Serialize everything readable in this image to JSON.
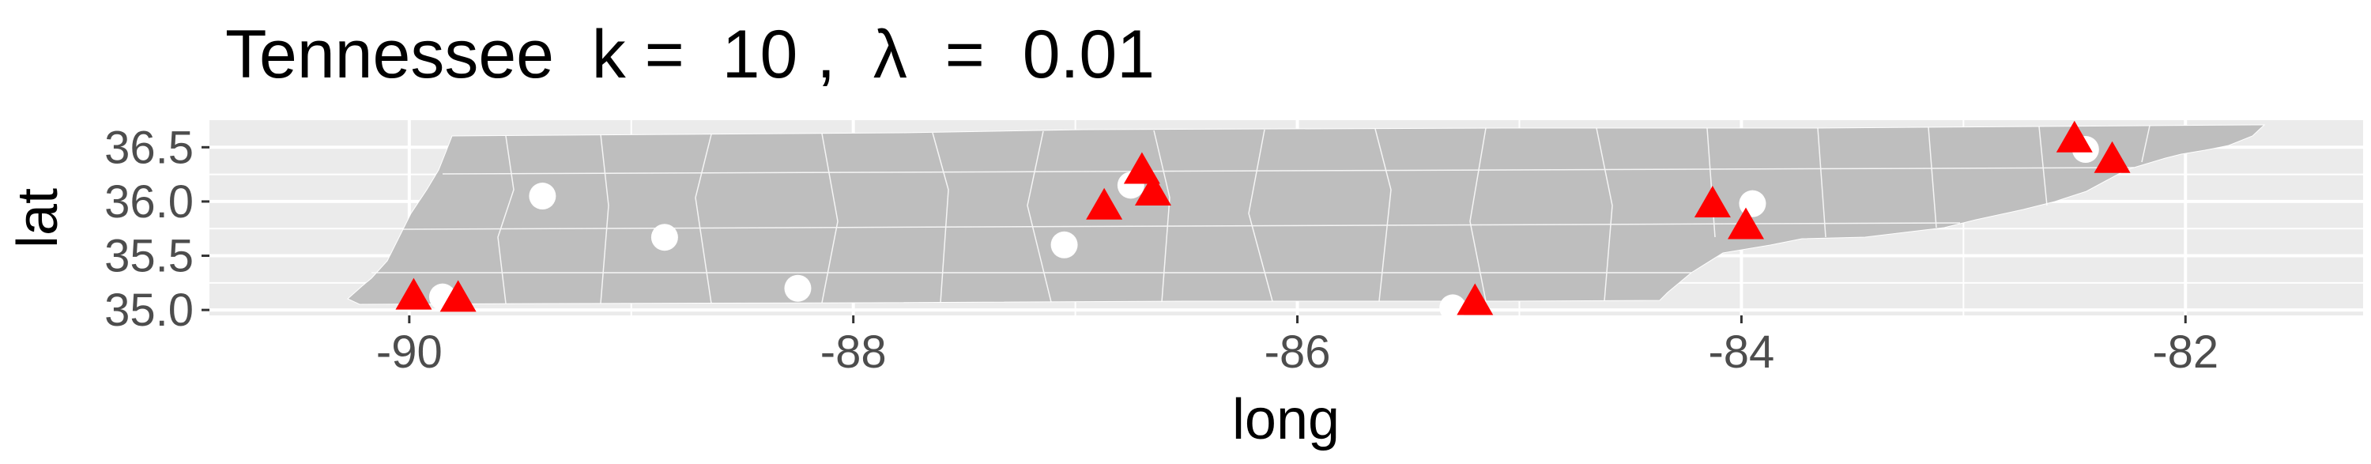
{
  "chart_data": {
    "type": "scatter",
    "title": "Tennessee  k =  10 ,  λ  =  0.01",
    "xlabel": "long",
    "ylabel": "lat",
    "xlim": [
      -90.9,
      -81.2
    ],
    "ylim": [
      34.95,
      36.75
    ],
    "x_ticks": [
      -90,
      -88,
      -86,
      -84,
      -82
    ],
    "x_tick_labels": [
      "-90",
      "-88",
      "-86",
      "-84",
      "-82"
    ],
    "y_ticks": [
      35.0,
      35.5,
      36.0,
      36.5
    ],
    "y_tick_labels": [
      "35.0",
      "35.5",
      "36.0",
      "36.5"
    ],
    "grid": true,
    "legend": "none",
    "background": "#ebebeb",
    "region_fill": "#bebebe",
    "series": [
      {
        "marker": "circle",
        "color": "#ffffff",
        "points": [
          {
            "x": -89.4,
            "y": 36.05
          },
          {
            "x": -88.85,
            "y": 35.67
          },
          {
            "x": -88.25,
            "y": 35.2
          },
          {
            "x": -87.05,
            "y": 35.6
          },
          {
            "x": -86.75,
            "y": 36.15
          },
          {
            "x": -85.3,
            "y": 35.02
          },
          {
            "x": -83.95,
            "y": 35.98
          },
          {
            "x": -82.45,
            "y": 36.48
          },
          {
            "x": -89.85,
            "y": 35.12
          }
        ]
      },
      {
        "marker": "triangle",
        "color": "#ff0000",
        "points": [
          {
            "x": -89.98,
            "y": 35.12
          },
          {
            "x": -89.78,
            "y": 35.1
          },
          {
            "x": -86.87,
            "y": 35.95
          },
          {
            "x": -86.7,
            "y": 36.28
          },
          {
            "x": -86.65,
            "y": 36.08
          },
          {
            "x": -85.2,
            "y": 35.07
          },
          {
            "x": -84.13,
            "y": 35.97
          },
          {
            "x": -83.98,
            "y": 35.77
          },
          {
            "x": -82.5,
            "y": 36.57
          },
          {
            "x": -82.33,
            "y": 36.38
          }
        ]
      }
    ]
  }
}
